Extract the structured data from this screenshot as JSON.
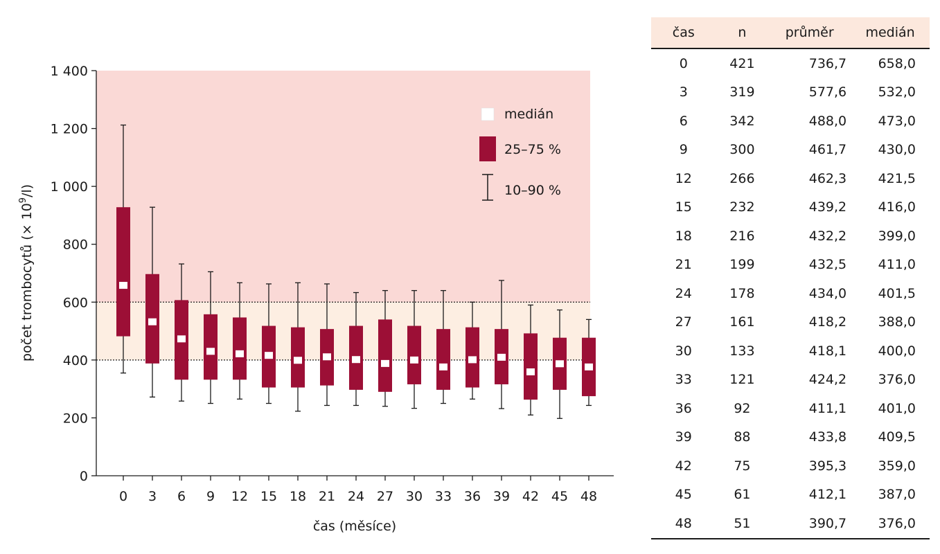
{
  "chart_data": {
    "type": "box",
    "xlabel": "čas (měsíce)",
    "ylabel_main": "počet trombocytů (× 10",
    "ylabel_sup": "9",
    "ylabel_end": "/l)",
    "ylim": [
      0,
      1400
    ],
    "yticks": [
      0,
      200,
      400,
      600,
      800,
      1000,
      1200,
      1400
    ],
    "ytick_labels": [
      "0",
      "200",
      "400",
      "600",
      "800",
      "1 000",
      "1 200",
      "1 400"
    ],
    "categories": [
      "0",
      "3",
      "6",
      "9",
      "12",
      "15",
      "18",
      "21",
      "24",
      "27",
      "30",
      "33",
      "36",
      "39",
      "42",
      "45",
      "48"
    ],
    "p10": [
      355,
      272,
      258,
      250,
      265,
      250,
      223,
      243,
      243,
      240,
      233,
      250,
      265,
      232,
      210,
      198,
      243
    ],
    "q1": [
      482,
      388,
      332,
      332,
      332,
      305,
      305,
      312,
      297,
      290,
      316,
      297,
      305,
      316,
      263,
      297,
      275
    ],
    "median": [
      658,
      532,
      473,
      430,
      421.5,
      416,
      399,
      411,
      401.5,
      388,
      400,
      376,
      401,
      409.5,
      359,
      387,
      376
    ],
    "q3": [
      928,
      697,
      607,
      558,
      547,
      518,
      513,
      507,
      518,
      540,
      518,
      507,
      513,
      507,
      492,
      477,
      477
    ],
    "p90": [
      1212,
      928,
      732,
      705,
      667,
      663,
      667,
      663,
      633,
      640,
      640,
      640,
      600,
      675,
      590,
      573,
      540
    ],
    "bands": [
      {
        "from": 600,
        "to": 1400,
        "color": "#fad9d6"
      },
      {
        "from": 400,
        "to": 600,
        "color": "#fdeee2"
      }
    ],
    "reference_lines": [
      400,
      600
    ],
    "box_color": "#9c0f36",
    "median_color": "#ffffff",
    "legend": {
      "position": "top-right",
      "median": "medián",
      "iqr": "25–75 %",
      "whisker": "10–90 %"
    }
  },
  "table": {
    "headers": [
      "čas",
      "n",
      "průměr",
      "medián"
    ],
    "rows": [
      [
        "0",
        "421",
        "736,7",
        "658,0"
      ],
      [
        "3",
        "319",
        "577,6",
        "532,0"
      ],
      [
        "6",
        "342",
        "488,0",
        "473,0"
      ],
      [
        "9",
        "300",
        "461,7",
        "430,0"
      ],
      [
        "12",
        "266",
        "462,3",
        "421,5"
      ],
      [
        "15",
        "232",
        "439,2",
        "416,0"
      ],
      [
        "18",
        "216",
        "432,2",
        "399,0"
      ],
      [
        "21",
        "199",
        "432,5",
        "411,0"
      ],
      [
        "24",
        "178",
        "434,0",
        "401,5"
      ],
      [
        "27",
        "161",
        "418,2",
        "388,0"
      ],
      [
        "30",
        "133",
        "418,1",
        "400,0"
      ],
      [
        "33",
        "121",
        "424,2",
        "376,0"
      ],
      [
        "36",
        "92",
        "411,1",
        "401,0"
      ],
      [
        "39",
        "88",
        "433,8",
        "409,5"
      ],
      [
        "42",
        "75",
        "395,3",
        "359,0"
      ],
      [
        "45",
        "61",
        "412,1",
        "387,0"
      ],
      [
        "48",
        "51",
        "390,7",
        "376,0"
      ]
    ],
    "header_bg": "#fce8dd"
  }
}
